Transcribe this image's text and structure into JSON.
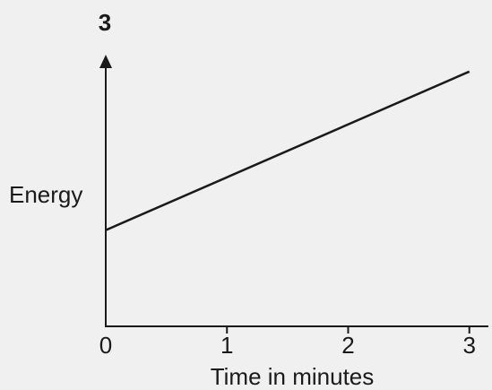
{
  "chart_data": {
    "type": "line",
    "title": "3",
    "xlabel": "Time in minutes",
    "ylabel": "Energy",
    "x_ticks": [
      "0",
      "1",
      "2",
      "3"
    ],
    "xlim": [
      0,
      3.15
    ],
    "ylim": [
      0,
      1
    ],
    "series": [
      {
        "x": [
          0,
          3
        ],
        "y": [
          0.37,
          0.98
        ]
      }
    ],
    "grid": false,
    "y_axis_arrow": true
  }
}
